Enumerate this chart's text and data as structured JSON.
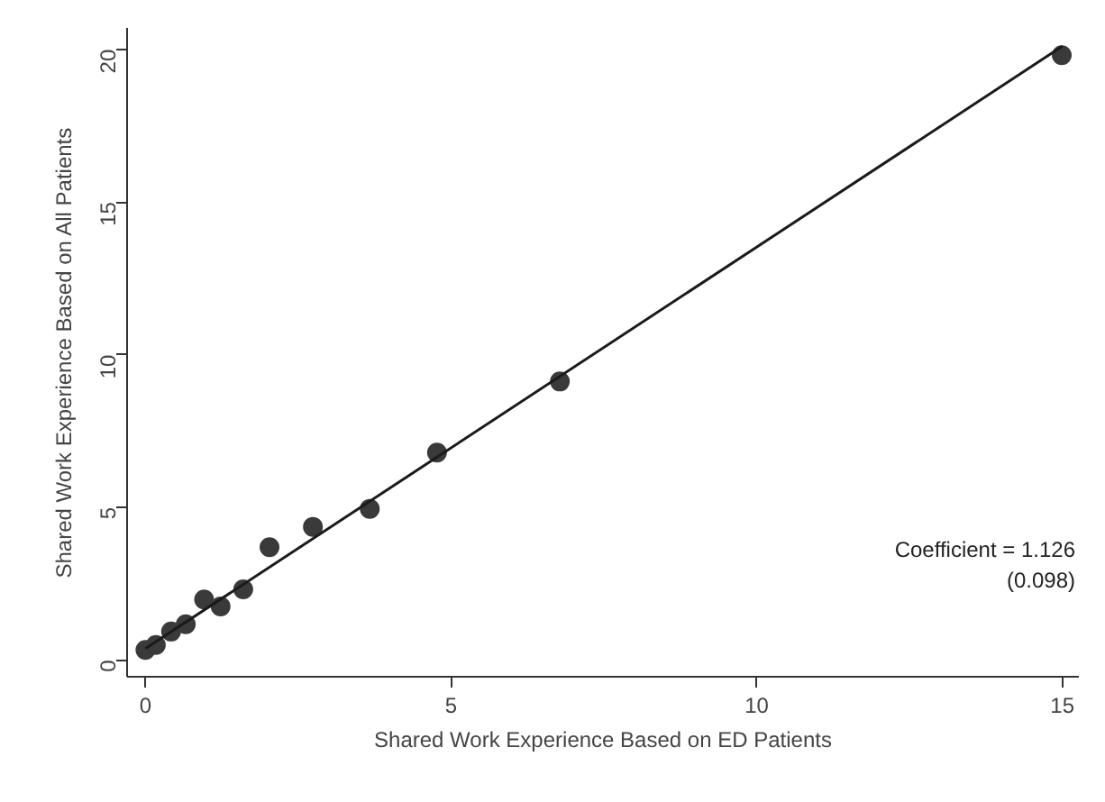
{
  "chart_data": {
    "type": "scatter",
    "xlabel": "Shared Work Experience Based on ED Patients",
    "ylabel": "Shared Work Experience Based on All Patients",
    "series": [
      {
        "color": "#3a3a3a",
        "marker": "circle",
        "x": [
          0,
          0.17,
          0.42,
          0.66,
          0.96,
          1.23,
          1.6,
          2.03,
          2.74,
          3.67,
          4.77,
          6.78,
          14.99
        ],
        "values": [
          0.33,
          0.49,
          0.93,
          1.17,
          1.98,
          1.75,
          2.31,
          3.69,
          4.36,
          4.95,
          6.79,
          9.12,
          19.81
        ]
      },
      {
        "type": "line",
        "color": "#1a1a1a",
        "line_style": "solid",
        "x": [
          0,
          15
        ],
        "values": [
          0.37,
          20.1
        ]
      }
    ],
    "annotations": [
      "Coefficient = 1.126\n(0.098)"
    ],
    "xlim": [
      -0.3,
      15.27
    ],
    "ylim": [
      -0.55,
      20.7
    ],
    "xticks": [
      0,
      5,
      10,
      15
    ],
    "yticks": [
      0,
      5,
      10,
      15,
      20
    ],
    "grid": false
  }
}
